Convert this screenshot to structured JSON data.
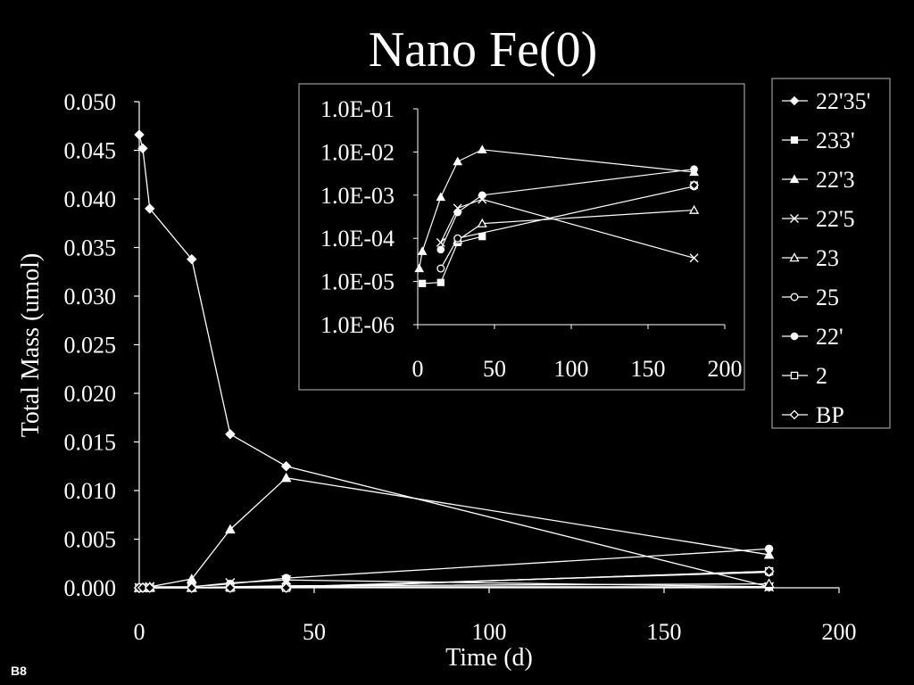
{
  "slide_label": "B8",
  "chart_data": [
    {
      "type": "line",
      "title": "Nano Fe(0)",
      "xlabel": "Time (d)",
      "ylabel": "Total Mass (umol)",
      "xlim": [
        0,
        200
      ],
      "ylim": [
        0,
        0.05
      ],
      "xticks": [
        0,
        50,
        100,
        150,
        200
      ],
      "xtick_labels": [
        "0",
        "50",
        "100",
        "150",
        "200"
      ],
      "yticks": [
        0,
        0.005,
        0.01,
        0.015,
        0.02,
        0.025,
        0.03,
        0.035,
        0.04,
        0.045,
        0.05
      ],
      "ytick_labels": [
        "0.000",
        "0.005",
        "0.010",
        "0.015",
        "0.020",
        "0.025",
        "0.030",
        "0.035",
        "0.040",
        "0.045",
        "0.050"
      ],
      "legend_position": "right",
      "series": [
        {
          "name": "22'35'",
          "marker": "diamond-filled",
          "x": [
            0,
            1,
            3,
            15,
            26,
            42,
            180
          ],
          "y": [
            0.0466,
            0.0452,
            0.039,
            0.0338,
            0.0158,
            0.0125,
            0.0001
          ]
        },
        {
          "name": "233'",
          "marker": "square-filled",
          "x": [
            0,
            1,
            3,
            15,
            26,
            42,
            180
          ],
          "y": [
            0.0,
            0.0,
            0.0,
            0.0,
            0.0001,
            0.0001,
            0.0001
          ]
        },
        {
          "name": "22'3",
          "marker": "triangle-filled",
          "x": [
            0,
            1,
            3,
            15,
            26,
            42,
            180
          ],
          "y": [
            0.0,
            0.0,
            0.0001,
            0.0009,
            0.006,
            0.0113,
            0.0034
          ]
        },
        {
          "name": "22'5",
          "marker": "x",
          "x": [
            0,
            1,
            3,
            15,
            26,
            42,
            180
          ],
          "y": [
            0.0,
            0.0,
            0.0001,
            0.0001,
            0.0005,
            0.0008,
            0.0001
          ]
        },
        {
          "name": "23",
          "marker": "triangle-open",
          "x": [
            0,
            1,
            3,
            15,
            26,
            42,
            180
          ],
          "y": [
            0.0,
            0.0,
            0.0,
            0.0,
            0.0001,
            0.0002,
            0.0004
          ]
        },
        {
          "name": "25",
          "marker": "circle-open",
          "x": [
            0,
            1,
            3,
            15,
            26,
            42,
            180
          ],
          "y": [
            0.0,
            0.0,
            0.0,
            0.0,
            0.0001,
            0.0001,
            0.0016
          ]
        },
        {
          "name": "22'",
          "marker": "circle-filled",
          "x": [
            0,
            1,
            3,
            15,
            26,
            42,
            180
          ],
          "y": [
            0.0,
            0.0,
            0.0,
            0.0001,
            0.0004,
            0.001,
            0.004
          ]
        },
        {
          "name": "2",
          "marker": "square-open",
          "x": [
            0,
            1,
            3,
            15,
            26,
            42,
            180
          ],
          "y": [
            0.0,
            0.0,
            0.0,
            0.0,
            0.0,
            0.0,
            0.0017
          ]
        },
        {
          "name": "BP",
          "marker": "diamond-open",
          "x": [
            0,
            1,
            3,
            15,
            26,
            42,
            180
          ],
          "y": [
            0.0,
            0.0,
            0.0,
            0.0,
            0.0,
            0.0,
            0.0017
          ]
        }
      ]
    },
    {
      "type": "line",
      "title": "",
      "xlabel": "",
      "ylabel": "",
      "yscale": "log",
      "xlim": [
        0,
        200
      ],
      "ylim": [
        1e-06,
        0.1
      ],
      "xticks": [
        0,
        50,
        100,
        150,
        200
      ],
      "xtick_labels": [
        "0",
        "50",
        "100",
        "150",
        "200"
      ],
      "yticks": [
        0.1,
        0.01,
        0.001,
        0.0001,
        1e-05,
        1e-06
      ],
      "ytick_labels": [
        "1.0E-01",
        "1.0E-02",
        "1.0E-03",
        "1.0E-04",
        "1.0E-05",
        "1.0E-06"
      ],
      "series": [
        {
          "name": "233'",
          "marker": "square-filled",
          "x": [
            3,
            15,
            26,
            42
          ],
          "y": [
            9e-06,
            9.5e-06,
            8e-05,
            0.00011
          ]
        },
        {
          "name": "22'3",
          "marker": "triangle-filled",
          "x": [
            1,
            3,
            15,
            26,
            42,
            180
          ],
          "y": [
            2e-05,
            5e-05,
            0.0009,
            0.006,
            0.0113,
            0.0034
          ]
        },
        {
          "name": "22'5",
          "marker": "x",
          "x": [
            15,
            26,
            42,
            180
          ],
          "y": [
            8e-05,
            0.0005,
            0.0008,
            3.5e-05
          ]
        },
        {
          "name": "23",
          "marker": "triangle-open",
          "x": [
            26,
            42,
            180
          ],
          "y": [
            9e-05,
            0.00022,
            0.00045
          ]
        },
        {
          "name": "25",
          "marker": "circle-open",
          "x": [
            15,
            26,
            180
          ],
          "y": [
            2e-05,
            0.0001,
            0.0016
          ]
        },
        {
          "name": "22'",
          "marker": "circle-filled",
          "x": [
            15,
            26,
            42,
            180
          ],
          "y": [
            5.5e-05,
            0.0004,
            0.001,
            0.004
          ]
        },
        {
          "name": "2",
          "marker": "square-open",
          "x": [
            180
          ],
          "y": [
            0.0017
          ]
        },
        {
          "name": "BP",
          "marker": "diamond-open",
          "x": [
            180
          ],
          "y": [
            0.0017
          ]
        }
      ]
    }
  ]
}
